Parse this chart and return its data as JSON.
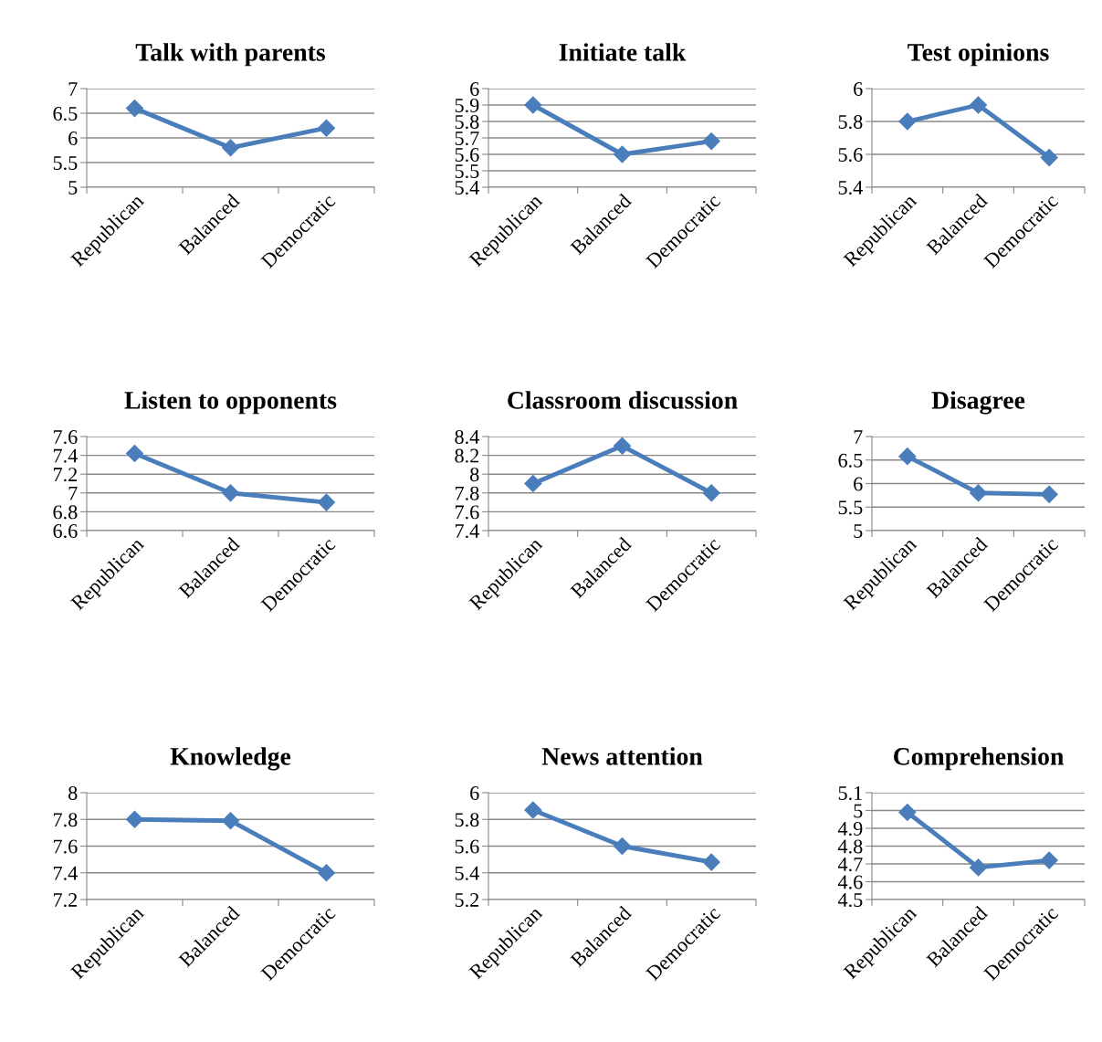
{
  "chart_data": [
    {
      "type": "line",
      "title": "Talk with parents",
      "categories": [
        "Republican",
        "Balanced",
        "Democratic"
      ],
      "series": [
        {
          "color": "#4a7ebb",
          "values": [
            6.6,
            5.8,
            6.2
          ]
        }
      ],
      "ylim": [
        5,
        7
      ],
      "yticks": [
        5,
        5.5,
        6,
        6.5,
        7
      ],
      "grid": "y",
      "marker": "diamond",
      "legend": false
    },
    {
      "type": "line",
      "title": "Initiate talk",
      "categories": [
        "Republican",
        "Balanced",
        "Democratic"
      ],
      "series": [
        {
          "color": "#4a7ebb",
          "values": [
            5.9,
            5.6,
            5.68
          ]
        }
      ],
      "ylim": [
        5.4,
        6
      ],
      "yticks": [
        5.4,
        5.5,
        5.6,
        5.7,
        5.8,
        5.9,
        6
      ],
      "grid": "y",
      "marker": "diamond",
      "legend": false
    },
    {
      "type": "line",
      "title": "Test opinions",
      "categories": [
        "Republican",
        "Balanced",
        "Democratic"
      ],
      "series": [
        {
          "color": "#4a7ebb",
          "values": [
            5.8,
            5.9,
            5.58
          ]
        }
      ],
      "ylim": [
        5.4,
        6
      ],
      "yticks": [
        5.4,
        5.6,
        5.8,
        6
      ],
      "grid": "y",
      "marker": "diamond",
      "legend": false
    },
    {
      "type": "line",
      "title": "Listen to opponents",
      "categories": [
        "Republican",
        "Balanced",
        "Democratic"
      ],
      "series": [
        {
          "color": "#4a7ebb",
          "values": [
            7.42,
            7.0,
            6.9
          ]
        }
      ],
      "ylim": [
        6.6,
        7.6
      ],
      "yticks": [
        6.6,
        6.8,
        7,
        7.2,
        7.4,
        7.6
      ],
      "grid": "y",
      "marker": "diamond",
      "legend": false
    },
    {
      "type": "line",
      "title": "Classroom discussion",
      "categories": [
        "Republican",
        "Balanced",
        "Democratic"
      ],
      "series": [
        {
          "color": "#4a7ebb",
          "values": [
            7.9,
            8.3,
            7.8
          ]
        }
      ],
      "ylim": [
        7.4,
        8.4
      ],
      "yticks": [
        7.4,
        7.6,
        7.8,
        8,
        8.2,
        8.4
      ],
      "grid": "y",
      "marker": "diamond",
      "legend": false
    },
    {
      "type": "line",
      "title": "Disagree",
      "categories": [
        "Republican",
        "Balanced",
        "Democratic"
      ],
      "series": [
        {
          "color": "#4a7ebb",
          "values": [
            6.58,
            5.8,
            5.77
          ]
        }
      ],
      "ylim": [
        5,
        7
      ],
      "yticks": [
        5,
        5.5,
        6,
        6.5,
        7
      ],
      "grid": "y",
      "marker": "diamond",
      "legend": false
    },
    {
      "type": "line",
      "title": "Knowledge",
      "categories": [
        "Republican",
        "Balanced",
        "Democratic"
      ],
      "series": [
        {
          "color": "#4a7ebb",
          "values": [
            7.8,
            7.79,
            7.4
          ]
        }
      ],
      "ylim": [
        7.2,
        8
      ],
      "yticks": [
        7.2,
        7.4,
        7.6,
        7.8,
        8
      ],
      "grid": "y",
      "marker": "diamond",
      "legend": false
    },
    {
      "type": "line",
      "title": "News attention",
      "categories": [
        "Republican",
        "Balanced",
        "Democratic"
      ],
      "series": [
        {
          "color": "#4a7ebb",
          "values": [
            5.87,
            5.6,
            5.48
          ]
        }
      ],
      "ylim": [
        5.2,
        6
      ],
      "yticks": [
        5.2,
        5.4,
        5.6,
        5.8,
        6
      ],
      "grid": "y",
      "marker": "diamond",
      "legend": false
    },
    {
      "type": "line",
      "title": "Comprehension",
      "categories": [
        "Republican",
        "Balanced",
        "Democratic"
      ],
      "series": [
        {
          "color": "#4a7ebb",
          "values": [
            4.99,
            4.68,
            4.72
          ]
        }
      ],
      "ylim": [
        4.5,
        5.1
      ],
      "yticks": [
        4.5,
        4.6,
        4.7,
        4.8,
        4.9,
        5,
        5.1
      ],
      "grid": "y",
      "marker": "diamond",
      "legend": false
    }
  ]
}
